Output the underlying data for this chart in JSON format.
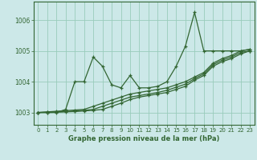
{
  "title": "",
  "xlabel": "Graphe pression niveau de la mer (hPa)",
  "bg_color": "#cce8e8",
  "grid_color": "#99ccbb",
  "line_color": "#336633",
  "x_ticks": [
    0,
    1,
    2,
    3,
    4,
    5,
    6,
    7,
    8,
    9,
    10,
    11,
    12,
    13,
    14,
    15,
    16,
    17,
    18,
    19,
    20,
    21,
    22,
    23
  ],
  "ylim": [
    1002.6,
    1006.6
  ],
  "xlim": [
    -0.5,
    23.5
  ],
  "yticks": [
    1003,
    1004,
    1005,
    1006
  ],
  "series1": [
    1003.0,
    1003.0,
    1003.0,
    1003.1,
    1004.0,
    1004.0,
    1004.8,
    1004.5,
    1003.9,
    1003.8,
    1004.2,
    1003.8,
    1003.8,
    1003.85,
    1004.0,
    1004.5,
    1005.15,
    1006.25,
    1005.0,
    1005.0,
    1005.0,
    1005.0,
    1005.0,
    1005.05
  ],
  "trend1": [
    1003.0,
    1003.02,
    1003.04,
    1003.06,
    1003.08,
    1003.1,
    1003.2,
    1003.3,
    1003.4,
    1003.5,
    1003.6,
    1003.65,
    1003.7,
    1003.75,
    1003.8,
    1003.9,
    1004.0,
    1004.15,
    1004.3,
    1004.6,
    1004.75,
    1004.85,
    1005.0,
    1005.05
  ],
  "trend2": [
    1003.0,
    1003.01,
    1003.02,
    1003.03,
    1003.05,
    1003.07,
    1003.1,
    1003.2,
    1003.3,
    1003.4,
    1003.5,
    1003.55,
    1003.6,
    1003.65,
    1003.72,
    1003.82,
    1003.92,
    1004.1,
    1004.25,
    1004.55,
    1004.7,
    1004.8,
    1004.95,
    1005.0
  ],
  "trend3": [
    1003.0,
    1003.0,
    1003.01,
    1003.02,
    1003.03,
    1003.05,
    1003.07,
    1003.1,
    1003.2,
    1003.3,
    1003.42,
    1003.5,
    1003.55,
    1003.6,
    1003.65,
    1003.75,
    1003.85,
    1004.05,
    1004.2,
    1004.5,
    1004.65,
    1004.75,
    1004.9,
    1005.0
  ]
}
